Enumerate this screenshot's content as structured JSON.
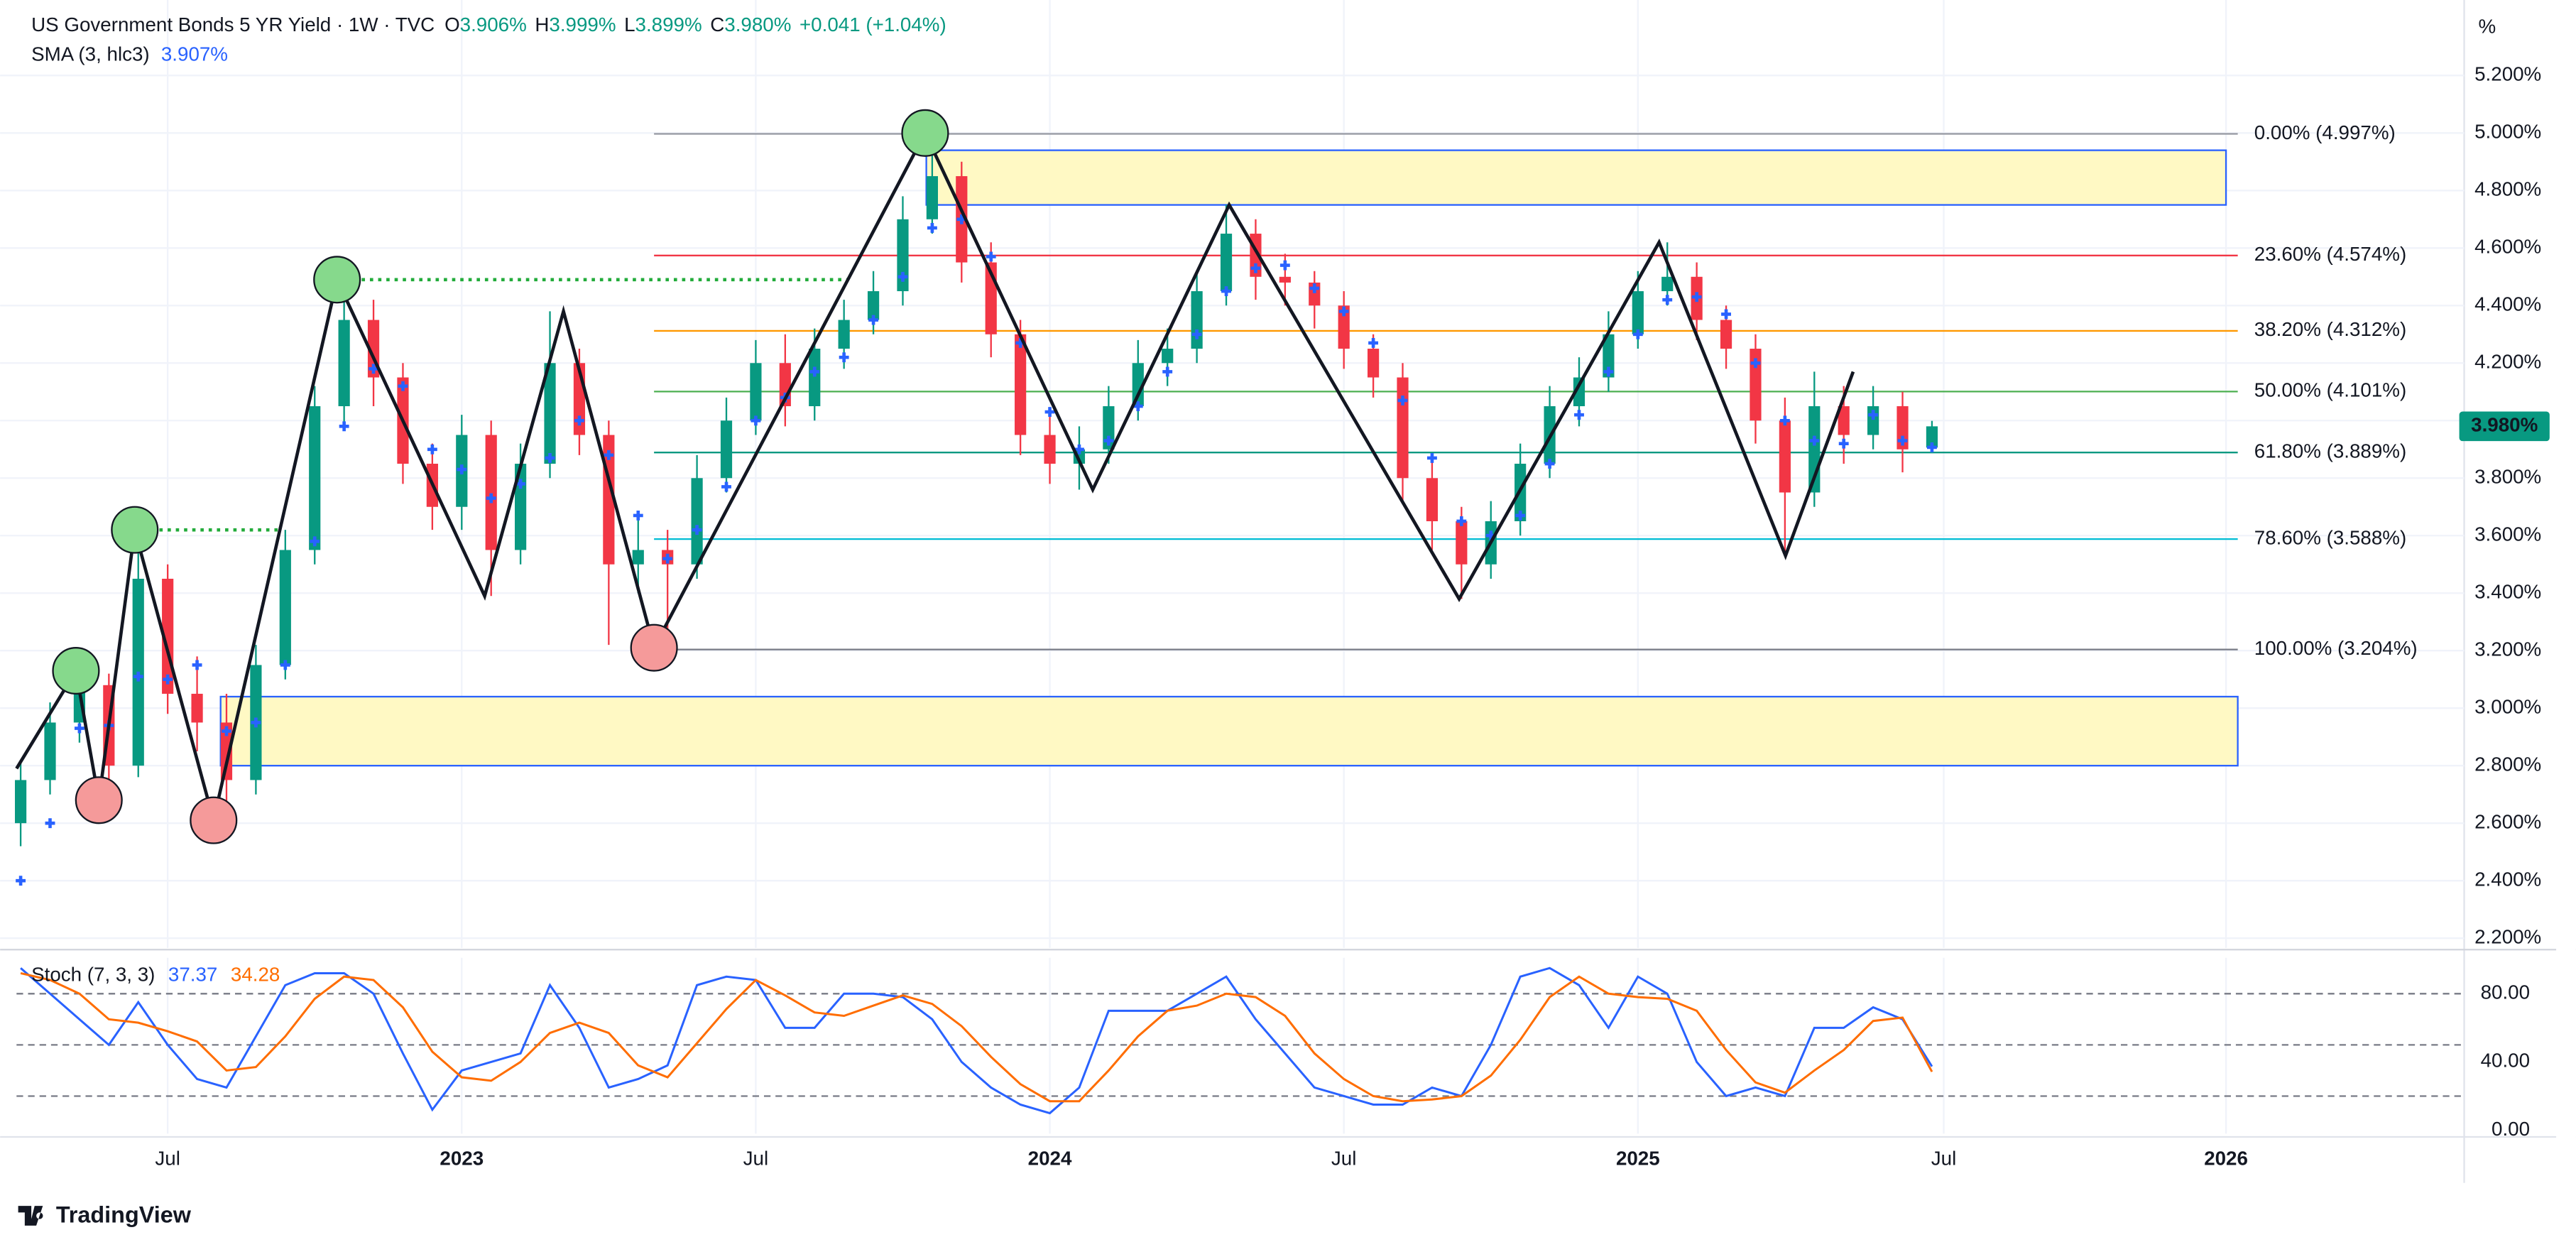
{
  "chart_data": [
    {
      "type": "candlestick",
      "title": "US Government Bonds 5 YR Yield · 1W · TVC",
      "ohlc_labels": [
        {
          "key": "O",
          "text": "3.906%"
        },
        {
          "key": "H",
          "text": "3.999%"
        },
        {
          "key": "L",
          "text": "3.899%"
        },
        {
          "key": "C",
          "text": "3.980%"
        }
      ],
      "change_label": "+0.041 (+1.04%)",
      "y_unit": "%",
      "last_label": "3.980%",
      "up_color": "#089981",
      "down_color": "#f23645",
      "xlim": [
        2022.243,
        2026.405
      ],
      "xticks": [
        {
          "value": 2022.5,
          "label": "Jul"
        },
        {
          "value": 2023,
          "label": "2023"
        },
        {
          "value": 2023.5,
          "label": "Jul"
        },
        {
          "value": 2024,
          "label": "2024"
        },
        {
          "value": 2024.5,
          "label": "Jul"
        },
        {
          "value": 2025,
          "label": "2025"
        },
        {
          "value": 2025.52,
          "label": "Jul"
        },
        {
          "value": 2026,
          "label": "2026"
        }
      ],
      "ylim": [
        2.166,
        5.434
      ],
      "yticks": [
        {
          "value": 2.2,
          "label": "2.200%"
        },
        {
          "value": 2.4,
          "label": "2.400%"
        },
        {
          "value": 2.6,
          "label": "2.600%"
        },
        {
          "value": 2.8,
          "label": "2.800%"
        },
        {
          "value": 3.0,
          "label": "3.000%"
        },
        {
          "value": 3.2,
          "label": "3.200%"
        },
        {
          "value": 3.4,
          "label": "3.400%"
        },
        {
          "value": 3.6,
          "label": "3.600%"
        },
        {
          "value": 3.8,
          "label": "3.800%"
        },
        {
          "value": 4.0,
          "label": "4.000%"
        },
        {
          "value": 4.2,
          "label": "4.200%"
        },
        {
          "value": 4.4,
          "label": "4.400%"
        },
        {
          "value": 4.6,
          "label": "4.600%"
        },
        {
          "value": 4.8,
          "label": "4.800%"
        },
        {
          "value": 5.0,
          "label": "5.000%"
        },
        {
          "value": 5.2,
          "label": "5.200%"
        }
      ],
      "grid": true,
      "x": [
        2022.25,
        2022.3,
        2022.35,
        2022.4,
        2022.45,
        2022.5,
        2022.55,
        2022.6,
        2022.65,
        2022.7,
        2022.75,
        2022.8,
        2022.85,
        2022.9,
        2022.95,
        2023,
        2023.05,
        2023.1,
        2023.15,
        2023.2,
        2023.25,
        2023.3,
        2023.35,
        2023.4,
        2023.45,
        2023.5,
        2023.55,
        2023.6,
        2023.65,
        2023.7,
        2023.75,
        2023.8,
        2023.85,
        2023.9,
        2023.95,
        2024,
        2024.05,
        2024.1,
        2024.15,
        2024.2,
        2024.25,
        2024.3,
        2024.35,
        2024.4,
        2024.45,
        2024.5,
        2024.55,
        2024.6,
        2024.65,
        2024.7,
        2024.75,
        2024.8,
        2024.85,
        2024.9,
        2024.95,
        2025,
        2025.05,
        2025.1,
        2025.15,
        2025.2,
        2025.25,
        2025.3,
        2025.35,
        2025.4,
        2025.45,
        2025.5
      ],
      "candles": [
        [
          2.6,
          2.82,
          2.52,
          2.75
        ],
        [
          2.75,
          3.02,
          2.7,
          2.95
        ],
        [
          2.95,
          3.13,
          2.88,
          3.08
        ],
        [
          3.08,
          3.12,
          2.68,
          2.8
        ],
        [
          2.8,
          3.62,
          2.76,
          3.45
        ],
        [
          3.45,
          3.5,
          2.98,
          3.05
        ],
        [
          3.05,
          3.18,
          2.85,
          2.95
        ],
        [
          2.95,
          3.05,
          2.61,
          2.75
        ],
        [
          2.75,
          3.22,
          2.7,
          3.15
        ],
        [
          3.15,
          3.62,
          3.1,
          3.55
        ],
        [
          3.55,
          4.12,
          3.5,
          4.05
        ],
        [
          4.05,
          4.49,
          3.98,
          4.35
        ],
        [
          4.35,
          4.42,
          4.05,
          4.15
        ],
        [
          4.15,
          4.2,
          3.78,
          3.85
        ],
        [
          3.85,
          3.92,
          3.62,
          3.7
        ],
        [
          3.7,
          4.02,
          3.62,
          3.95
        ],
        [
          3.95,
          4.0,
          3.39,
          3.55
        ],
        [
          3.55,
          3.92,
          3.5,
          3.85
        ],
        [
          3.85,
          4.38,
          3.8,
          4.2
        ],
        [
          4.2,
          4.25,
          3.88,
          3.95
        ],
        [
          3.95,
          4.0,
          3.22,
          3.5
        ],
        [
          3.5,
          3.68,
          3.4,
          3.55
        ],
        [
          3.55,
          3.62,
          3.21,
          3.5
        ],
        [
          3.5,
          3.88,
          3.45,
          3.8
        ],
        [
          3.8,
          4.08,
          3.75,
          4.0
        ],
        [
          4.0,
          4.28,
          3.95,
          4.2
        ],
        [
          4.2,
          4.3,
          3.98,
          4.05
        ],
        [
          4.05,
          4.32,
          4.0,
          4.25
        ],
        [
          4.25,
          4.42,
          4.18,
          4.35
        ],
        [
          4.35,
          4.52,
          4.3,
          4.45
        ],
        [
          4.45,
          4.78,
          4.4,
          4.7
        ],
        [
          4.7,
          5.0,
          4.65,
          4.85
        ],
        [
          4.85,
          4.9,
          4.48,
          4.55
        ],
        [
          4.55,
          4.62,
          4.22,
          4.3
        ],
        [
          4.3,
          4.35,
          3.88,
          3.95
        ],
        [
          3.95,
          4.02,
          3.78,
          3.85
        ],
        [
          3.85,
          3.98,
          3.76,
          3.9
        ],
        [
          3.9,
          4.12,
          3.85,
          4.05
        ],
        [
          4.05,
          4.28,
          4.0,
          4.2
        ],
        [
          4.2,
          4.32,
          4.12,
          4.25
        ],
        [
          4.25,
          4.52,
          4.2,
          4.45
        ],
        [
          4.45,
          4.75,
          4.4,
          4.65
        ],
        [
          4.65,
          4.7,
          4.42,
          4.5
        ],
        [
          4.5,
          4.58,
          4.4,
          4.48
        ],
        [
          4.48,
          4.52,
          4.32,
          4.4
        ],
        [
          4.4,
          4.45,
          4.18,
          4.25
        ],
        [
          4.25,
          4.3,
          4.08,
          4.15
        ],
        [
          4.15,
          4.2,
          3.72,
          3.8
        ],
        [
          3.8,
          3.88,
          3.55,
          3.65
        ],
        [
          3.65,
          3.7,
          3.38,
          3.5
        ],
        [
          3.5,
          3.72,
          3.45,
          3.65
        ],
        [
          3.65,
          3.92,
          3.6,
          3.85
        ],
        [
          3.85,
          4.12,
          3.8,
          4.05
        ],
        [
          4.05,
          4.22,
          3.98,
          4.15
        ],
        [
          4.15,
          4.38,
          4.1,
          4.3
        ],
        [
          4.3,
          4.52,
          4.25,
          4.45
        ],
        [
          4.45,
          4.62,
          4.4,
          4.5
        ],
        [
          4.5,
          4.55,
          4.28,
          4.35
        ],
        [
          4.35,
          4.4,
          4.18,
          4.25
        ],
        [
          4.25,
          4.3,
          3.92,
          4.0
        ],
        [
          4.0,
          4.08,
          3.53,
          3.75
        ],
        [
          3.75,
          4.17,
          3.7,
          4.05
        ],
        [
          4.05,
          4.12,
          3.85,
          3.95
        ],
        [
          3.95,
          4.12,
          3.9,
          4.05
        ],
        [
          4.05,
          4.1,
          3.82,
          3.9
        ],
        [
          3.906,
          3.999,
          3.899,
          3.98
        ]
      ],
      "sma": {
        "name": "SMA (3, hlc3)",
        "value_label": "3.907%",
        "color": "#2962ff",
        "values": [
          2.4,
          2.6,
          2.93,
          2.94,
          3.11,
          3.1,
          3.15,
          2.92,
          2.95,
          3.15,
          3.58,
          3.98,
          4.18,
          4.12,
          3.9,
          3.83,
          3.73,
          3.78,
          3.87,
          4.0,
          3.88,
          3.67,
          3.52,
          3.62,
          3.77,
          4.0,
          4.08,
          4.17,
          4.22,
          4.35,
          4.5,
          4.67,
          4.7,
          4.57,
          4.27,
          4.03,
          3.9,
          3.93,
          4.05,
          4.17,
          4.3,
          4.45,
          4.53,
          4.54,
          4.46,
          4.38,
          4.27,
          4.07,
          3.87,
          3.65,
          3.6,
          3.67,
          3.85,
          4.02,
          4.17,
          4.3,
          4.42,
          4.43,
          4.37,
          4.2,
          4.0,
          3.93,
          3.92,
          4.02,
          3.93,
          3.907
        ]
      },
      "fib": {
        "x": [
          2023.327,
          2026.02
        ],
        "levels": [
          {
            "value": 4.997,
            "label": "0.00% (4.997%)",
            "color": "#9598a1"
          },
          {
            "value": 4.574,
            "label": "23.60% (4.574%)",
            "color": "#f23645"
          },
          {
            "value": 4.312,
            "label": "38.20% (4.312%)",
            "color": "#ff9800"
          },
          {
            "value": 4.101,
            "label": "50.00% (4.101%)",
            "color": "#4caf50"
          },
          {
            "value": 3.889,
            "label": "61.80% (3.889%)",
            "color": "#089981"
          },
          {
            "value": 3.588,
            "label": "78.60% (3.588%)",
            "color": "#00bcd4"
          },
          {
            "value": 3.204,
            "label": "100.00% (3.204%)",
            "color": "#787b86"
          }
        ]
      },
      "zones": [
        {
          "x": [
            2023.79,
            2026.0
          ],
          "y": [
            4.75,
            4.94
          ]
        },
        {
          "x": [
            2022.59,
            2026.02
          ],
          "y": [
            2.8,
            3.04
          ]
        }
      ],
      "zone_fill": "#fff9c4",
      "zone_stroke": "#2962ff",
      "zigzag": {
        "x": [
          2022.243,
          2022.344,
          2022.383,
          2022.444,
          2022.578,
          2022.788,
          2023.039,
          2023.173,
          2023.327,
          2023.788,
          2024.073,
          2024.305,
          2024.696,
          2025.036,
          2025.251,
          2025.366
        ],
        "values": [
          2.79,
          3.13,
          2.68,
          3.62,
          2.61,
          4.49,
          3.39,
          4.38,
          3.21,
          5.0,
          3.76,
          4.75,
          3.38,
          4.62,
          3.53,
          4.17
        ],
        "markers": [
          null,
          "high",
          "low",
          "high",
          "low",
          "high",
          null,
          null,
          "low",
          "high",
          null,
          null,
          null,
          null,
          null,
          null
        ],
        "marker_colors": {
          "high": "#86d98c",
          "low": "#f59a9a"
        }
      },
      "dotted_levels": [
        {
          "value": 3.62,
          "x": [
            2022.444,
            2022.69
          ]
        },
        {
          "value": 4.49,
          "x": [
            2022.788,
            2023.655
          ]
        }
      ],
      "dotted_color": "#22ab3a"
    },
    {
      "type": "line",
      "title": "Stoch (7, 3, 3)",
      "ylim": [
        -2,
        101
      ],
      "yticks": [
        {
          "value": 0,
          "label": "0.00"
        },
        {
          "value": 40,
          "label": "40.00"
        },
        {
          "value": 80,
          "label": "80.00"
        }
      ],
      "bands": [
        80,
        50,
        20
      ],
      "series": [
        {
          "name": "37.37",
          "color": "#2962ff",
          "values": [
            95,
            80,
            65,
            50,
            75,
            50,
            30,
            25,
            55,
            85,
            92,
            92,
            80,
            45,
            12,
            35,
            40,
            45,
            85,
            60,
            25,
            30,
            38,
            85,
            90,
            88,
            60,
            60,
            80,
            80,
            78,
            65,
            40,
            25,
            15,
            10,
            25,
            70,
            70,
            70,
            80,
            90,
            65,
            45,
            25,
            20,
            15,
            15,
            25,
            20,
            50,
            90,
            95,
            85,
            60,
            90,
            80,
            40,
            20,
            25,
            20,
            60,
            60,
            72,
            65,
            37.37
          ]
        },
        {
          "name": "34.28",
          "color": "#ff6d00",
          "values": [
            92,
            88,
            80,
            65,
            63,
            58,
            52,
            35,
            37,
            55,
            77,
            90,
            88,
            72,
            46,
            31,
            29,
            40,
            57,
            63,
            57,
            38,
            31,
            51,
            71,
            88,
            79,
            69,
            67,
            73,
            79,
            74,
            61,
            43,
            27,
            17,
            17,
            35,
            55,
            70,
            73,
            80,
            78,
            67,
            45,
            30,
            20,
            17,
            18,
            20,
            32,
            53,
            78,
            90,
            80,
            78,
            77,
            70,
            47,
            28,
            22,
            35,
            47,
            64,
            66,
            34.28
          ]
        }
      ]
    }
  ],
  "footer": "TradingView"
}
